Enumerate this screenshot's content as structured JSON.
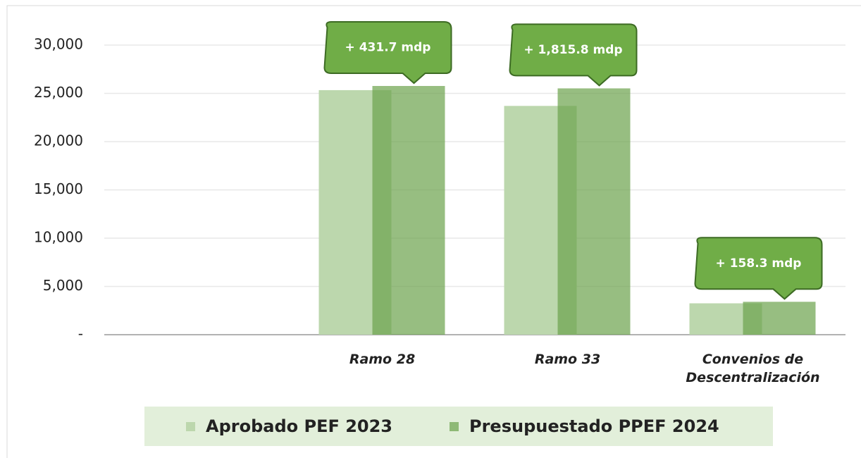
{
  "chart_data": {
    "type": "bar",
    "categories": [
      null,
      "Ramo 28",
      "Ramo 33",
      "Convenios de Descentralización"
    ],
    "series": [
      {
        "name": "Aprobado PEF 2023",
        "color": "#bcd7ad",
        "values": [
          null,
          25334,
          23700,
          3250
        ]
      },
      {
        "name": "Presupuestado PPEF 2024",
        "color": "#6ba34b",
        "values": [
          null,
          25766,
          25516,
          3408
        ]
      }
    ],
    "ylim": [
      0,
      30000
    ],
    "yticks": [
      {
        "value": 0,
        "label": "-"
      },
      {
        "value": 5000,
        "label": "5,000"
      },
      {
        "value": 10000,
        "label": "10,000"
      },
      {
        "value": 15000,
        "label": "15,000"
      },
      {
        "value": 20000,
        "label": "20,000"
      },
      {
        "value": 25000,
        "label": "25,000"
      },
      {
        "value": 30000,
        "label": "30,000"
      }
    ],
    "grid": true,
    "annotations": [
      {
        "text": "+ 431.7 mdp",
        "category": 1
      },
      {
        "text": "+ 1,815.8 mdp",
        "category": 2
      },
      {
        "text": "+ 158.3 mdp",
        "category": 3
      }
    ]
  }
}
